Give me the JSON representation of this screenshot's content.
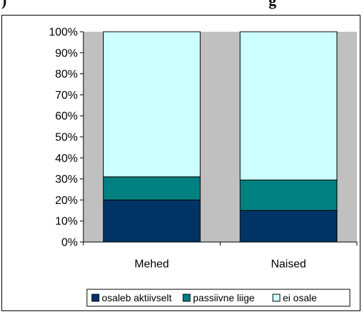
{
  "caption": {
    "left": ")",
    "right": "g"
  },
  "chart_data": {
    "type": "bar",
    "stacked": true,
    "categories": [
      "Mehed",
      "Naised"
    ],
    "series": [
      {
        "name": "osaleb aktiivselt",
        "values": [
          20,
          15
        ],
        "color": "#003366"
      },
      {
        "name": "passiivne liige",
        "values": [
          11,
          14.5
        ],
        "color": "#008080"
      },
      {
        "name": "ei osale",
        "values": [
          69,
          70.5
        ],
        "color": "#ccffff"
      }
    ],
    "ylim": [
      0,
      100
    ],
    "yticks": [
      "0%",
      "10%",
      "20%",
      "30%",
      "40%",
      "50%",
      "60%",
      "70%",
      "80%",
      "90%",
      "100%"
    ],
    "plot_background": "#c0c0c0",
    "legend_position": "bottom"
  }
}
